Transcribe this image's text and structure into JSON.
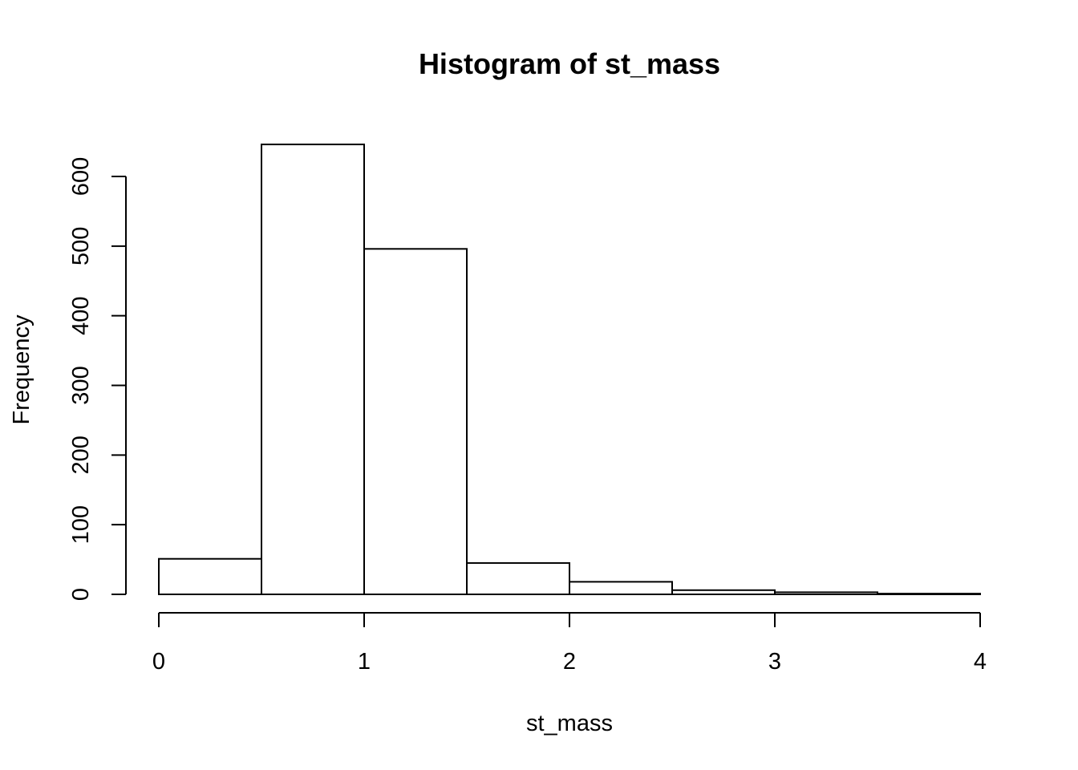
{
  "chart_data": {
    "type": "bar",
    "title": "Histogram of st_mass",
    "xlabel": "st_mass",
    "ylabel": "Frequency",
    "bins": [
      {
        "x0": 0.0,
        "x1": 0.5,
        "count": 51
      },
      {
        "x0": 0.5,
        "x1": 1.0,
        "count": 646
      },
      {
        "x0": 1.0,
        "x1": 1.5,
        "count": 496
      },
      {
        "x0": 1.5,
        "x1": 2.0,
        "count": 45
      },
      {
        "x0": 2.0,
        "x1": 2.5,
        "count": 18
      },
      {
        "x0": 2.5,
        "x1": 3.0,
        "count": 6
      },
      {
        "x0": 3.0,
        "x1": 3.5,
        "count": 3
      },
      {
        "x0": 3.5,
        "x1": 4.0,
        "count": 1
      }
    ],
    "xlim": [
      0,
      4
    ],
    "ylim": [
      0,
      600
    ],
    "x_ticks": [
      0,
      1,
      2,
      3,
      4
    ],
    "y_ticks": [
      0,
      100,
      200,
      300,
      400,
      500,
      600
    ],
    "grid": false,
    "bar_fill": "#ffffff",
    "bar_stroke": "#000000"
  }
}
